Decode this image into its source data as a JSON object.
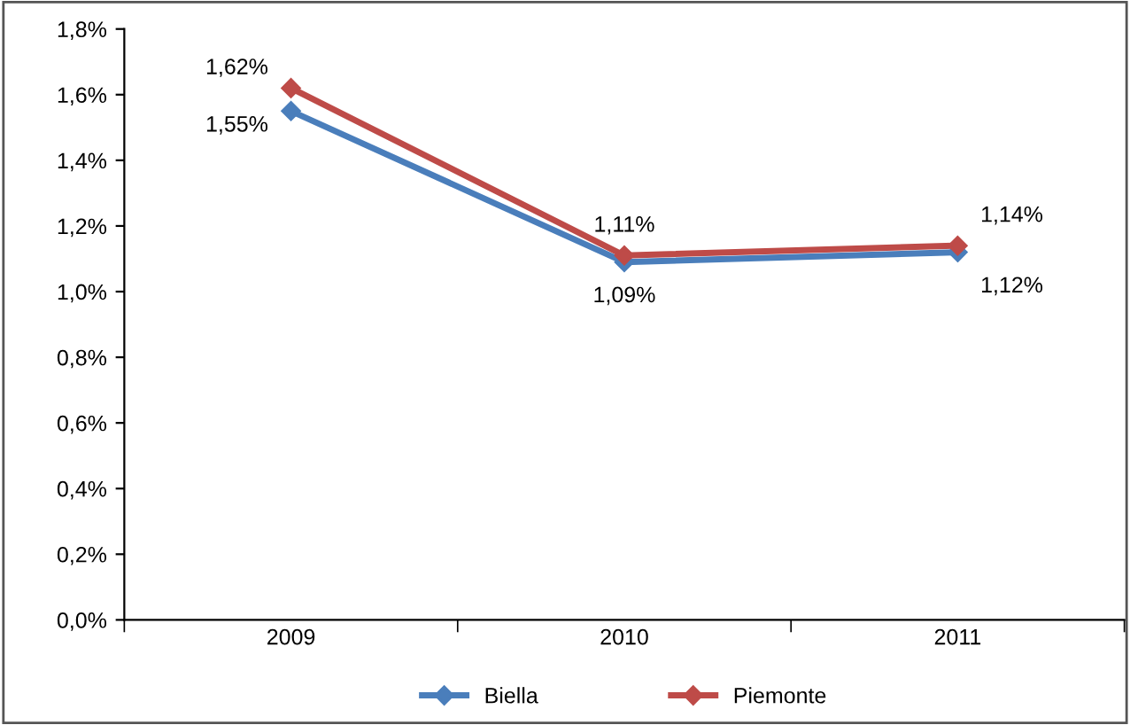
{
  "chart_data": {
    "type": "line",
    "categories": [
      "2009",
      "2010",
      "2011"
    ],
    "series": [
      {
        "name": "Biella",
        "color": "#4a7ebb",
        "values": [
          1.55,
          1.09,
          1.12
        ],
        "value_labels": [
          "1,55%",
          "1,09%",
          "1,12%"
        ]
      },
      {
        "name": "Piemonte",
        "color": "#be4b48",
        "values": [
          1.62,
          1.11,
          1.14
        ],
        "value_labels": [
          "1,62%",
          "1,11%",
          "1,14%"
        ]
      }
    ],
    "ylim": [
      0,
      1.8
    ],
    "yticks": [
      {
        "value": 0,
        "label": "0,0%"
      },
      {
        "value": 0.2,
        "label": "0,2%"
      },
      {
        "value": 0.4,
        "label": "0,4%"
      },
      {
        "value": 0.6,
        "label": "0,6%"
      },
      {
        "value": 0.8,
        "label": "0,8%"
      },
      {
        "value": 1.0,
        "label": "1,0%"
      },
      {
        "value": 1.2,
        "label": "1,2%"
      },
      {
        "value": 1.4,
        "label": "1,4%"
      },
      {
        "value": 1.6,
        "label": "1,6%"
      },
      {
        "value": 1.8,
        "label": "1,8%"
      }
    ],
    "grid": false,
    "legend": "bottom",
    "marker": "diamond",
    "line_style": "solid"
  }
}
